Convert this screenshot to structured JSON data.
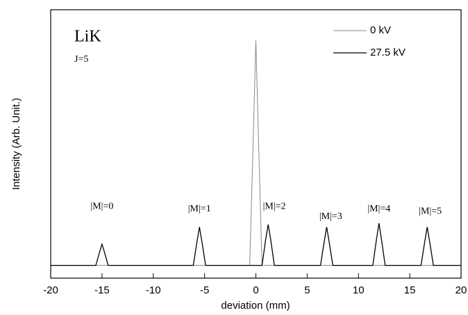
{
  "chart_data": {
    "type": "line",
    "xlabel": "deviation (mm)",
    "ylabel": "Intensity (Arb. Unit.)",
    "xlim": [
      -20,
      20
    ],
    "xticks": [
      -20,
      -15,
      -10,
      -5,
      0,
      5,
      10,
      15,
      20
    ],
    "ylim": [
      -5,
      100
    ],
    "legend": "upper right",
    "texts": [
      "LiK",
      "J=5"
    ],
    "series": [
      {
        "name": "0 kV",
        "color": "#888888",
        "x": [
          -20,
          -0.6,
          -0.25,
          0,
          0.25,
          0.6,
          20
        ],
        "values": [
          0,
          0,
          50,
          88,
          50,
          0,
          0
        ]
      },
      {
        "name": "27.5 kV",
        "color": "#000000",
        "x": [
          -20,
          -15.6,
          -15.25,
          -15,
          -14.75,
          -14.4,
          -6.1,
          -5.75,
          -5.5,
          -5.25,
          -4.9,
          0.6,
          0.95,
          1.2,
          1.45,
          1.8,
          6.3,
          6.65,
          6.9,
          7.15,
          7.5,
          11.4,
          11.75,
          12,
          12.25,
          12.6,
          16.1,
          16.45,
          16.7,
          16.95,
          17.3,
          20
        ],
        "values": [
          0,
          0,
          5,
          8.3,
          5,
          0,
          0,
          9,
          15,
          9,
          0,
          0,
          10,
          16,
          10,
          0,
          0,
          9,
          15,
          9,
          0,
          0,
          10,
          16.5,
          10,
          0,
          0,
          9,
          15,
          9,
          0,
          0
        ]
      }
    ],
    "annotations": [
      {
        "text": "|M|=0",
        "x": -15,
        "y": 23
      },
      {
        "text": "|M|=1",
        "x": -5.5,
        "y": 22
      },
      {
        "text": "|M|=2",
        "x": 1.8,
        "y": 23
      },
      {
        "text": "|M|=3",
        "x": 7.3,
        "y": 19
      },
      {
        "text": "|M|=4",
        "x": 12,
        "y": 22
      },
      {
        "text": "|M|=5",
        "x": 17,
        "y": 21
      }
    ]
  }
}
